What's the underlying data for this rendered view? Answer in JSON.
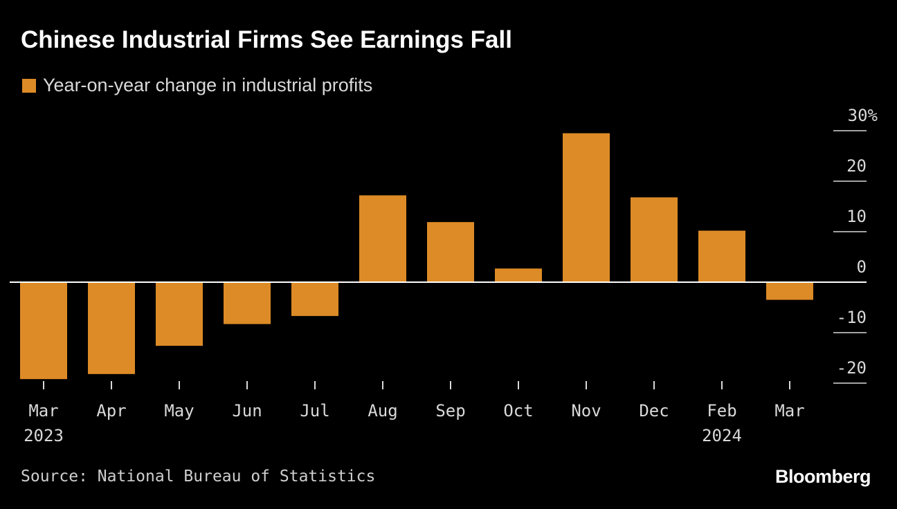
{
  "title": "Chinese Industrial Firms See Earnings Fall",
  "legend": {
    "label": "Year-on-year change in industrial profits"
  },
  "source": "Source: National Bureau of Statistics",
  "brand": "Bloomberg",
  "colors": {
    "bar": "#DD8B26",
    "background": "#000000",
    "zero_line": "#ffffff",
    "text": "#d9d9d9"
  },
  "chart_data": {
    "type": "bar",
    "categories": [
      "Mar",
      "Apr",
      "May",
      "Jun",
      "Jul",
      "Aug",
      "Sep",
      "Oct",
      "Nov",
      "Dec",
      "Feb",
      "Mar"
    ],
    "category_sublabels": [
      "2023",
      "",
      "",
      "",
      "",
      "",
      "",
      "",
      "",
      "",
      "2024",
      ""
    ],
    "series": [
      {
        "name": "Year-on-year change in industrial profits",
        "values": [
          -19.2,
          -18.2,
          -12.6,
          -8.3,
          -6.7,
          17.2,
          11.9,
          2.7,
          29.5,
          16.8,
          10.2,
          -3.5
        ]
      }
    ],
    "ylim": [
      -20,
      30
    ],
    "yticks": [
      30,
      20,
      10,
      0,
      -10,
      -20
    ],
    "ytick_labels": [
      "30%",
      "20",
      "10",
      "0",
      "-10",
      "-20"
    ],
    "y_axis_position": "right",
    "grid": false,
    "legend_position": "top-left"
  }
}
